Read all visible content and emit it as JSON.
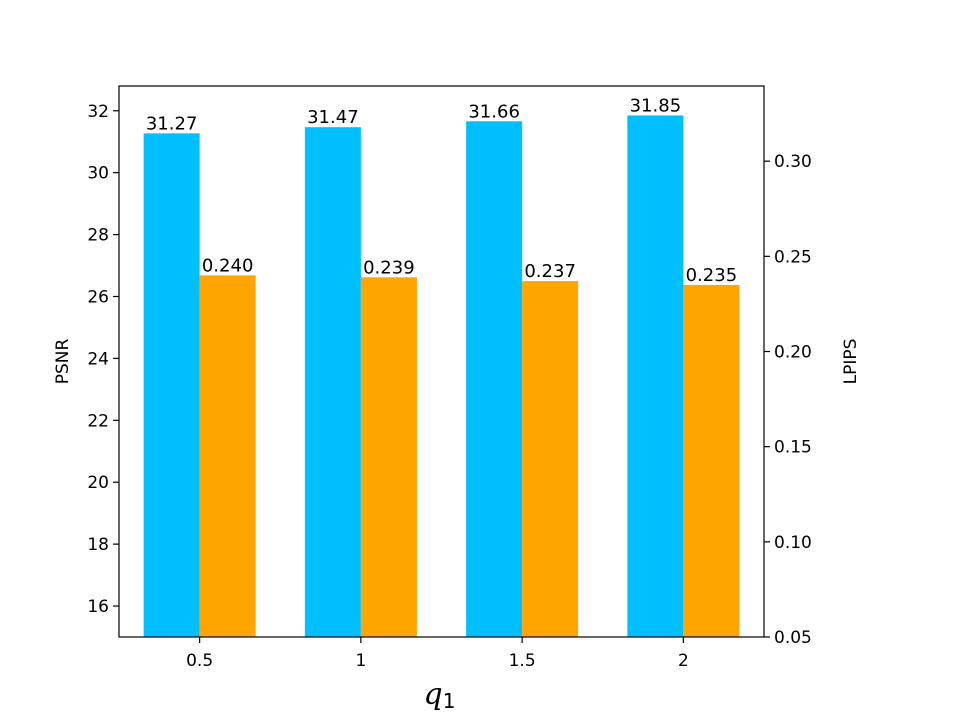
{
  "chart_data": {
    "type": "bar",
    "categories": [
      "0.5",
      "1",
      "1.5",
      "2"
    ],
    "xlabel": {
      "main": "q",
      "sub": "1"
    },
    "ylabel": "PSNR",
    "y2label": "LPIPS",
    "ylim": [
      15,
      32.8
    ],
    "y2lim": [
      0.05,
      0.3395
    ],
    "yticks": [
      "16",
      "18",
      "20",
      "22",
      "24",
      "26",
      "28",
      "30",
      "32"
    ],
    "y2ticks": [
      "0.05",
      "0.10",
      "0.15",
      "0.20",
      "0.25",
      "0.30"
    ],
    "series": [
      {
        "name": "PSNR",
        "axis": "left",
        "color": "#00BFFF",
        "values": [
          31.27,
          31.47,
          31.66,
          31.85
        ],
        "labels": [
          "31.27",
          "31.47",
          "31.66",
          "31.85"
        ]
      },
      {
        "name": "LPIPS",
        "axis": "right",
        "color": "#FFA500",
        "values": [
          0.24,
          0.239,
          0.237,
          0.235
        ],
        "labels": [
          "0.240",
          "0.239",
          "0.237",
          "0.235"
        ]
      }
    ],
    "grid": false,
    "legend": "none"
  }
}
